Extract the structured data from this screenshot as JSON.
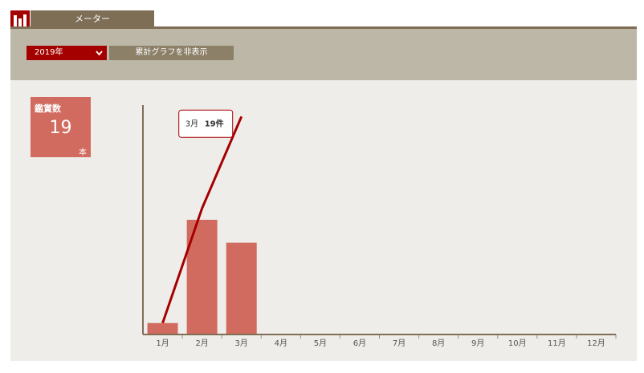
{
  "header": {
    "tab": "メーター",
    "year_select": "2019年",
    "toggle_button": "累計グラフを非表示"
  },
  "summary": {
    "label": "鑑賞数",
    "value": 19,
    "unit": "本"
  },
  "chart_data": {
    "type": "bar",
    "categories": [
      "1月",
      "2月",
      "3月",
      "4月",
      "5月",
      "6月",
      "7月",
      "8月",
      "9月",
      "10月",
      "11月",
      "12月"
    ],
    "ylim": [
      0,
      20
    ],
    "series": [
      {
        "type": "bar",
        "color": "#d26b5f",
        "values": [
          1,
          10,
          8,
          0,
          0,
          0,
          0,
          0,
          0,
          0,
          0,
          0
        ]
      },
      {
        "type": "line",
        "color": "#a50000",
        "values": [
          1,
          11,
          19,
          null,
          null,
          null,
          null,
          null,
          null,
          null,
          null,
          null
        ],
        "value_labels": [
          null,
          null,
          "19件",
          null,
          null,
          null,
          null,
          null,
          null,
          null,
          null,
          null
        ]
      }
    ],
    "tooltip_index": 2
  }
}
